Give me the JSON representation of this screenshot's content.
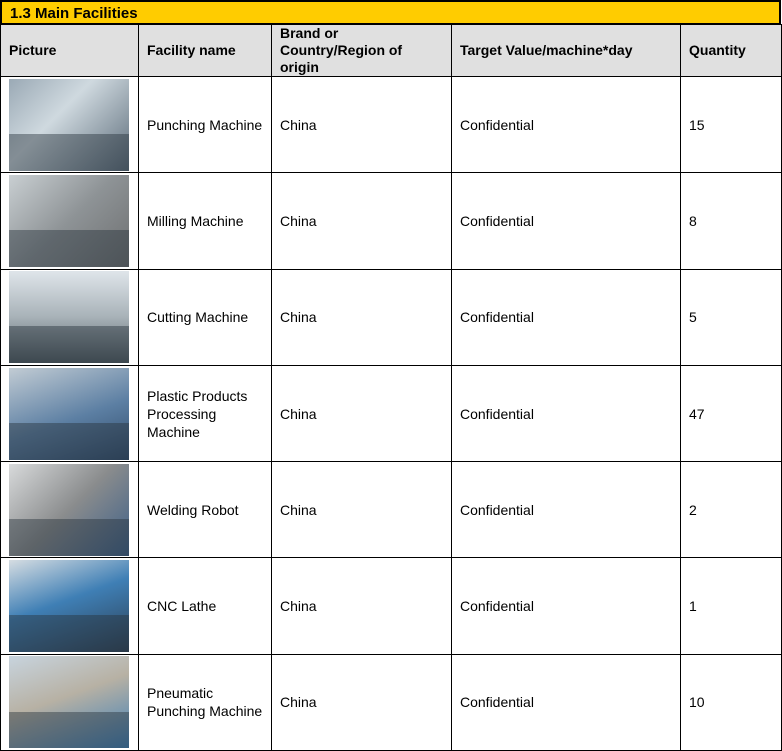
{
  "section_title": "1.3 Main Facilities",
  "columns": [
    "Picture",
    "Facility name",
    "Brand or Country/Region of origin",
    "Target Value/machine*day",
    "Quantity"
  ],
  "rows": [
    {
      "name": "Punching Machine",
      "origin": "China",
      "target": "Confidential",
      "quantity": "15",
      "photo": "linear-gradient(135deg,#9aa9b5,#cfd9df 40%,#5a6a78)"
    },
    {
      "name": "Milling Machine",
      "origin": "China",
      "target": "Confidential",
      "quantity": "8",
      "photo": "linear-gradient(135deg,#c9cfd2,#8e9396 50%,#6d6f70)"
    },
    {
      "name": "Cutting Machine",
      "origin": "China",
      "target": "Confidential",
      "quantity": "5",
      "photo": "linear-gradient(180deg,#dfe5ea,#a8b2b8 50%,#4f5a60)"
    },
    {
      "name": "Plastic Products Processing Machine",
      "origin": "China",
      "target": "Confidential",
      "quantity": "47",
      "photo": "linear-gradient(160deg,#c2ccd4,#5c7fa3 55%,#2f4a6a)"
    },
    {
      "name": "Welding Robot",
      "origin": "China",
      "target": "Confidential",
      "quantity": "2",
      "photo": "linear-gradient(135deg,#d8dadb,#8a8c8d 50%,#3c5f88)"
    },
    {
      "name": "CNC Lathe",
      "origin": "China",
      "target": "Confidential",
      "quantity": "1",
      "photo": "linear-gradient(160deg,#d6dde2,#3f7fb5 45%,#2c3e52)"
    },
    {
      "name": "Pneumatic Punching Machine",
      "origin": "China",
      "target": "Confidential",
      "quantity": "10",
      "photo": "linear-gradient(160deg,#c8d4de,#b7b1a4 45%,#3d7fb8)"
    }
  ]
}
